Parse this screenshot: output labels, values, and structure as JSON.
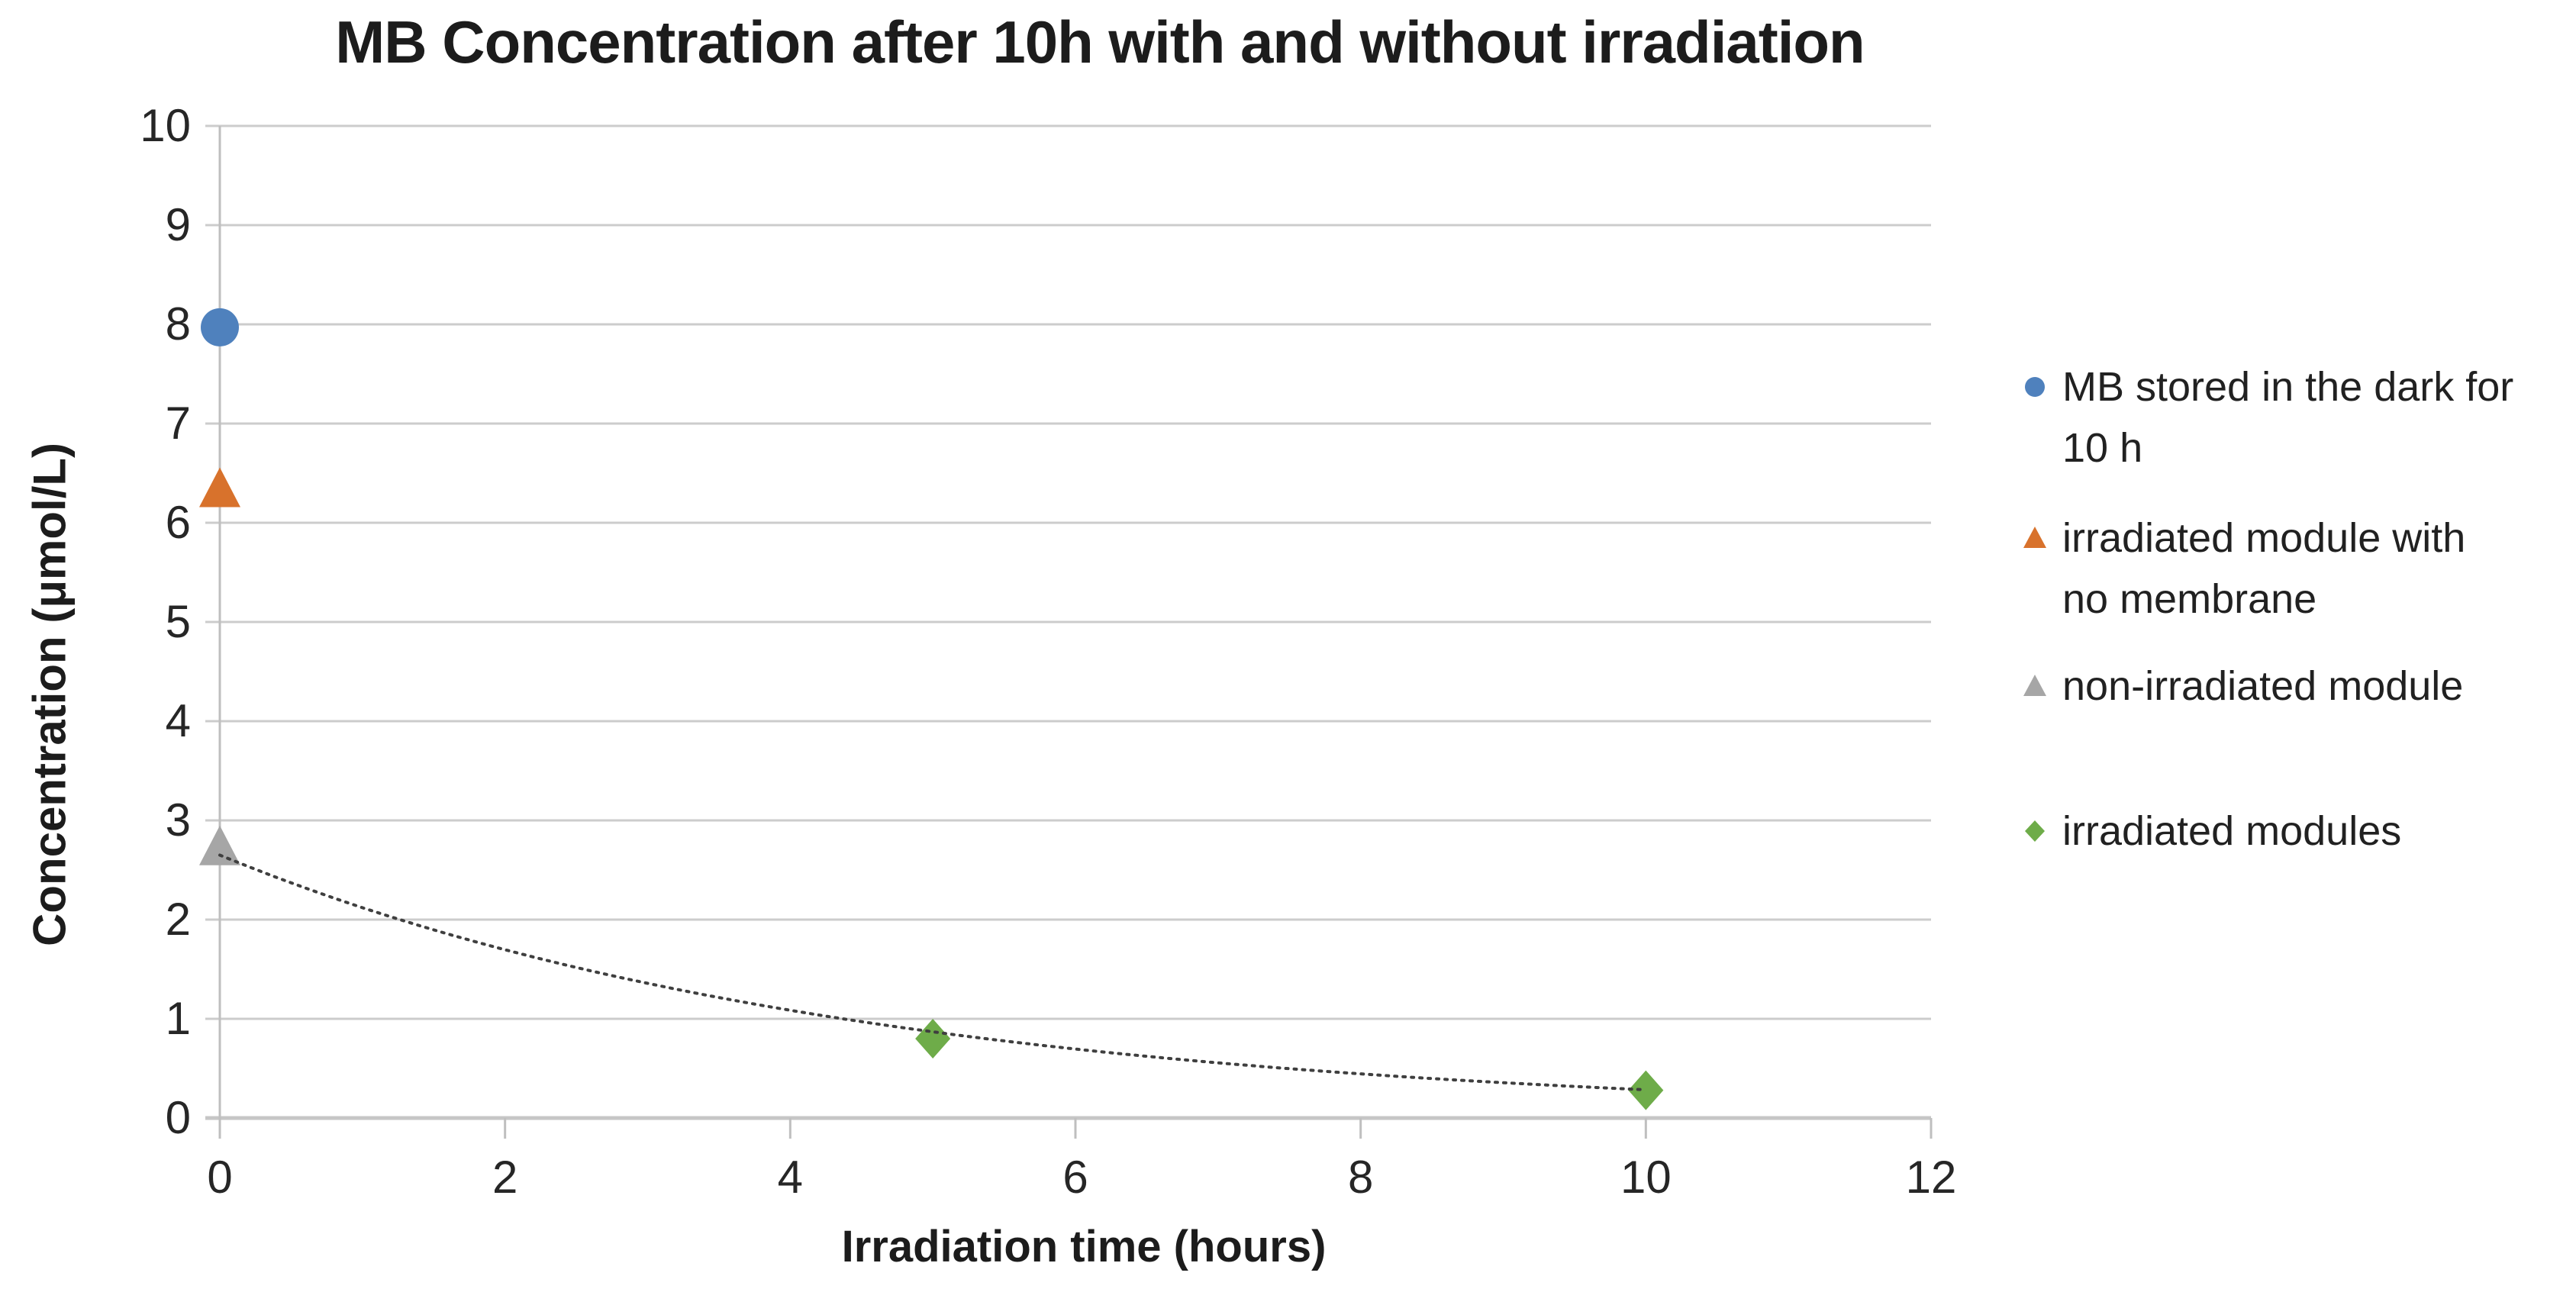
{
  "chart": {
    "title": "MB Concentration after 10h with and without irradiation",
    "x_axis_title": "Irradiation time (hours)",
    "y_axis_title": "Concentration (μmol/L)"
  },
  "chart_data": {
    "type": "scatter",
    "title": "MB Concentration after 10h with and without irradiation",
    "xlabel": "Irradiation time (hours)",
    "ylabel": "Concentration (μmol/L)",
    "xlim": [
      0,
      12
    ],
    "ylim": [
      0,
      10
    ],
    "x_ticks": [
      0,
      2,
      4,
      6,
      8,
      10,
      12
    ],
    "y_ticks": [
      0,
      1,
      2,
      3,
      4,
      5,
      6,
      7,
      8,
      9,
      10
    ],
    "grid": "horizontal",
    "legend_position": "right",
    "series": [
      {
        "name": "MB stored in the dark for 10 h",
        "marker": "circle",
        "color": "#4F81BD",
        "points": [
          [
            0,
            7.97
          ]
        ]
      },
      {
        "name": "irradiated module with no membrane",
        "marker": "triangle",
        "color": "#D8722C",
        "points": [
          [
            0,
            6.35
          ]
        ]
      },
      {
        "name": "non-irradiated module",
        "marker": "triangle",
        "color": "#A6A6A6",
        "points": [
          [
            0,
            2.74
          ]
        ]
      },
      {
        "name": "irradiated modules",
        "marker": "diamond",
        "color": "#6EAC49",
        "points": [
          [
            5,
            0.8
          ],
          [
            10,
            0.28
          ]
        ]
      }
    ],
    "trendline": {
      "style": "dotted",
      "color": "#3F3F3F",
      "model": "exponential",
      "a": 2.65,
      "k": 0.223,
      "x_range": [
        0,
        10
      ]
    },
    "colors": {
      "gridline": "#CCCCCC",
      "axis_line": "#BFBFBF",
      "baseline": "#C6C6C6",
      "tick_text": "#262626",
      "title_text": "#1C1C1C"
    }
  },
  "legend": {
    "items": [
      {
        "lines": [
          "MB stored in the dark for",
          "10 h"
        ]
      },
      {
        "lines": [
          "irradiated module with",
          "no membrane"
        ]
      },
      {
        "lines": [
          "non-irradiated module"
        ]
      },
      {
        "lines": [
          "irradiated modules"
        ]
      }
    ]
  }
}
